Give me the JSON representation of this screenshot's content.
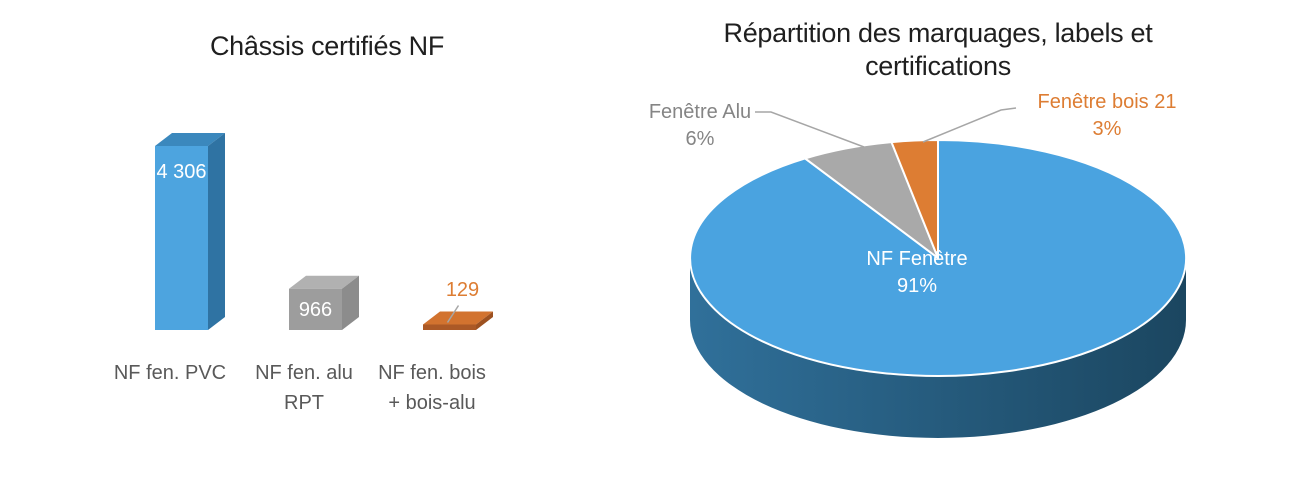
{
  "page": {
    "background": "#ffffff"
  },
  "chart_data": [
    {
      "type": "bar",
      "effect": "3d",
      "title": "Châssis certifiés NF",
      "categories": [
        "NF fen. PVC",
        "NF fen. alu RPT",
        "NF fen. bois + bois-alu"
      ],
      "category_lines": [
        [
          "NF fen. PVC",
          ""
        ],
        [
          "NF fen. alu",
          "RPT"
        ],
        [
          "NF fen. bois",
          "+ bois-alu"
        ]
      ],
      "values": [
        4306,
        966,
        129
      ],
      "value_labels": [
        "4 306",
        "966",
        "129"
      ],
      "ylim": [
        0,
        4306
      ],
      "gridlines": false,
      "legend": "none",
      "axis_label_color": "#595959",
      "leader_line_color": "#a6a6a6",
      "series_colors": [
        {
          "front": "#4da4df",
          "top": "#3b88bd",
          "side": "#2f73a3",
          "label": "#ffffff"
        },
        {
          "front": "#9d9d9d",
          "top": "#b1b1b1",
          "side": "#8c8c8c",
          "label": "#ffffff"
        },
        {
          "front": "#ab5926",
          "top": "#d2732f",
          "side": "#9d5120",
          "label": "#dd7d33"
        }
      ]
    },
    {
      "type": "pie",
      "effect": "3d",
      "title": "Répartition des marquages, labels et certifications",
      "title_lines": [
        "Répartition des marquages, labels et",
        "certifications"
      ],
      "start_angle_deg": 0,
      "direction": "clockwise",
      "legend": "none",
      "leader_line_color": "#a6a6a6",
      "side_gradient": [
        "#30709a",
        "#1b4660"
      ],
      "slices": [
        {
          "label": "NF Fenêtre",
          "value_pct": 91,
          "pct_label": "91%",
          "color": "#4aa3e0",
          "label_placement": "inside",
          "label_color": "#ffffff"
        },
        {
          "label": "Fenêtre Alu",
          "value_pct": 6,
          "pct_label": "6%",
          "color": "#a9a9a9",
          "label_placement": "outside",
          "label_color": "#858585"
        },
        {
          "label": "Fenêtre bois 21",
          "value_pct": 3,
          "pct_label": "3%",
          "color": "#dd7d33",
          "label_placement": "outside",
          "label_color": "#dd7d33"
        }
      ]
    }
  ]
}
